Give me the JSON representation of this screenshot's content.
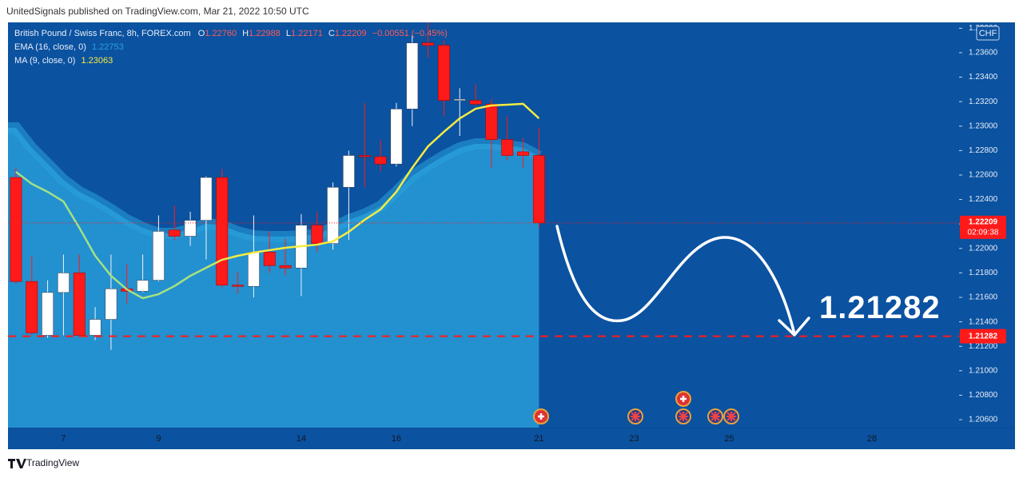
{
  "header": "UnitedSignals published on TradingView.com, Mar 21, 2022 10:50 UTC",
  "footer": "TradingView",
  "chart_data": {
    "type": "candlestick",
    "title": "British Pound / Swiss Franc, 8h, FOREX.com",
    "legend_ohlc": [
      {
        "key": "O",
        "value": "1.22760"
      },
      {
        "key": "H",
        "value": "1.22988"
      },
      {
        "key": "L",
        "value": "1.22171"
      },
      {
        "key": "C",
        "value": "1.22209"
      }
    ],
    "change": "−0.00551 (−0.45%)",
    "currency": "CHF",
    "categories": [
      null,
      null,
      null,
      "7",
      null,
      null,
      null,
      null,
      null,
      "9",
      null,
      null,
      null,
      null,
      null,
      null,
      null,
      null,
      "14",
      null,
      null,
      null,
      null,
      null,
      "16",
      null,
      null,
      null,
      null,
      null,
      null,
      null,
      null,
      "21",
      null,
      null,
      null,
      null,
      null,
      "23",
      null,
      null,
      null,
      null,
      null,
      "25",
      null,
      null,
      null,
      null,
      null,
      null,
      null,
      null,
      "28",
      null,
      null,
      null,
      null,
      null
    ],
    "open": [
      1.2258,
      1.2173,
      1.2129,
      1.2164,
      1.218,
      1.2129,
      1.2142,
      1.2167,
      1.2165,
      1.2174,
      1.2215,
      1.221,
      1.2223,
      1.2258,
      1.217,
      1.2169,
      1.2197,
      1.2186,
      1.2184,
      1.2219,
      1.2204,
      1.225,
      1.2276,
      1.2275,
      1.2269,
      1.2314,
      1.2368,
      1.2366,
      1.2321,
      1.2321,
      1.2318,
      1.2289,
      1.2279,
      1.2276,
      null,
      null,
      null,
      null,
      null,
      null,
      null,
      null,
      null,
      null,
      null,
      null,
      null,
      null,
      null,
      null,
      null,
      null,
      null,
      null,
      null,
      null,
      null,
      null,
      null,
      null
    ],
    "high": [
      1.2266,
      1.2194,
      1.2174,
      1.2195,
      1.2195,
      1.2152,
      1.2195,
      1.2187,
      1.2195,
      1.2227,
      1.2235,
      1.223,
      1.2259,
      1.2265,
      1.2181,
      1.2227,
      1.2214,
      1.2208,
      1.2228,
      1.223,
      1.2254,
      1.228,
      1.2319,
      1.2289,
      1.2319,
      1.2374,
      1.2385,
      1.237,
      1.2331,
      1.2334,
      1.2322,
      1.2308,
      1.229,
      1.22988,
      null,
      null,
      null,
      null,
      null,
      null,
      null,
      null,
      null,
      null,
      null,
      null,
      null,
      null,
      null,
      null,
      null,
      null,
      null,
      null,
      null,
      null,
      null,
      null,
      null,
      null
    ],
    "low": [
      1.2171,
      1.2129,
      1.2127,
      1.2129,
      1.2127,
      1.2125,
      1.2117,
      1.2155,
      1.2164,
      1.2173,
      1.2207,
      1.2202,
      1.2191,
      1.2168,
      1.2163,
      1.216,
      1.218,
      1.2178,
      1.2161,
      1.2197,
      1.2199,
      1.2207,
      1.225,
      1.2263,
      1.2267,
      1.23,
      1.2356,
      1.2308,
      1.2292,
      1.2317,
      1.2266,
      1.2272,
      1.2266,
      1.22171,
      null,
      null,
      null,
      null,
      null,
      null,
      null,
      null,
      null,
      null,
      null,
      null,
      null,
      null,
      null,
      null,
      null,
      null,
      null,
      null,
      null,
      null,
      null,
      null,
      null,
      null
    ],
    "close": [
      1.2173,
      1.2131,
      1.2164,
      1.218,
      1.2129,
      1.2142,
      1.2167,
      1.2165,
      1.2174,
      1.2214,
      1.221,
      1.2223,
      1.2258,
      1.217,
      1.2169,
      1.2197,
      1.2186,
      1.2184,
      1.2219,
      1.2204,
      1.225,
      1.2276,
      1.2275,
      1.2269,
      1.2314,
      1.2368,
      1.2366,
      1.2321,
      1.2322,
      1.2318,
      1.2289,
      1.2276,
      1.2276,
      1.22209,
      null,
      null,
      null,
      null,
      null,
      null,
      null,
      null,
      null,
      null,
      null,
      null,
      null,
      null,
      null,
      null,
      null,
      null,
      null,
      null,
      null,
      null,
      null,
      null,
      null,
      null
    ],
    "up_color": "#ffffff",
    "down_color": "#ff1a1a",
    "series": [
      {
        "name": "EMA (16, close, 0)",
        "color": "#2aa2dc",
        "style": "area",
        "values": [
          1.22986,
          1.22822,
          1.22692,
          1.22561,
          1.22463,
          1.22397,
          1.22319,
          1.22234,
          1.22169,
          1.22123,
          1.22123,
          1.22156,
          1.22201,
          1.22188,
          1.22136,
          1.22103,
          1.22097,
          1.22097,
          1.22103,
          1.22116,
          1.22169,
          1.22234,
          1.2228,
          1.22345,
          1.22463,
          1.22593,
          1.22678,
          1.22757,
          1.22822,
          1.22855,
          1.22855,
          1.22842,
          1.22822,
          1.22753,
          null,
          null,
          null,
          null,
          null,
          null,
          null,
          null,
          null,
          null,
          null,
          null,
          null,
          null,
          null,
          null,
          null,
          null,
          null,
          null,
          null,
          null,
          null,
          null,
          null,
          null
        ]
      },
      {
        "name": "MA (9, close, 0)",
        "color": "#f5eb42",
        "style": "line",
        "values": [
          1.22626,
          1.22528,
          1.22463,
          1.22384,
          1.22169,
          1.2194,
          1.21776,
          1.21665,
          1.21593,
          1.21626,
          1.21692,
          1.21776,
          1.21842,
          1.21907,
          1.2194,
          1.21966,
          1.21986,
          1.22005,
          1.22018,
          1.22031,
          1.22058,
          1.22136,
          1.22234,
          1.22319,
          1.22463,
          1.22659,
          1.22835,
          1.22953,
          1.23063,
          1.23142,
          1.23169,
          1.23175,
          1.23182,
          1.23063,
          null,
          null,
          null,
          null,
          null,
          null,
          null,
          null,
          null,
          null,
          null,
          null,
          null,
          null,
          null,
          null,
          null,
          null,
          null,
          null,
          null,
          null,
          null,
          null,
          null,
          null
        ]
      }
    ],
    "price_line": {
      "value": 1.22209,
      "countdown": "02:09:38",
      "color": "#ff1a1a"
    },
    "target_line": {
      "value": 1.21282,
      "color": "#ff1a1a"
    },
    "ylim": [
      1.20535,
      1.23848
    ],
    "yticks": [
      {
        "value": 1.206,
        "label": "1.20600"
      },
      {
        "value": 1.208,
        "label": "1.20800"
      },
      {
        "value": 1.21,
        "label": "1.21000"
      },
      {
        "value": 1.212,
        "label": "1.21200"
      },
      {
        "value": 1.214,
        "label": "1.21400"
      },
      {
        "value": 1.216,
        "label": "1.21600"
      },
      {
        "value": 1.218,
        "label": "1.21800"
      },
      {
        "value": 1.22,
        "label": "1.22000"
      },
      {
        "value": 1.222,
        "label": "1.22200"
      },
      {
        "value": 1.224,
        "label": "1.22400"
      },
      {
        "value": 1.226,
        "label": "1.22600"
      },
      {
        "value": 1.228,
        "label": "1.22800"
      },
      {
        "value": 1.23,
        "label": "1.23000"
      },
      {
        "value": 1.232,
        "label": "1.23200"
      },
      {
        "value": 1.234,
        "label": "1.23400"
      },
      {
        "value": 1.236,
        "label": "1.23600"
      },
      {
        "value": 1.238,
        "label": "1.23800"
      }
    ],
    "grid": false
  }
}
